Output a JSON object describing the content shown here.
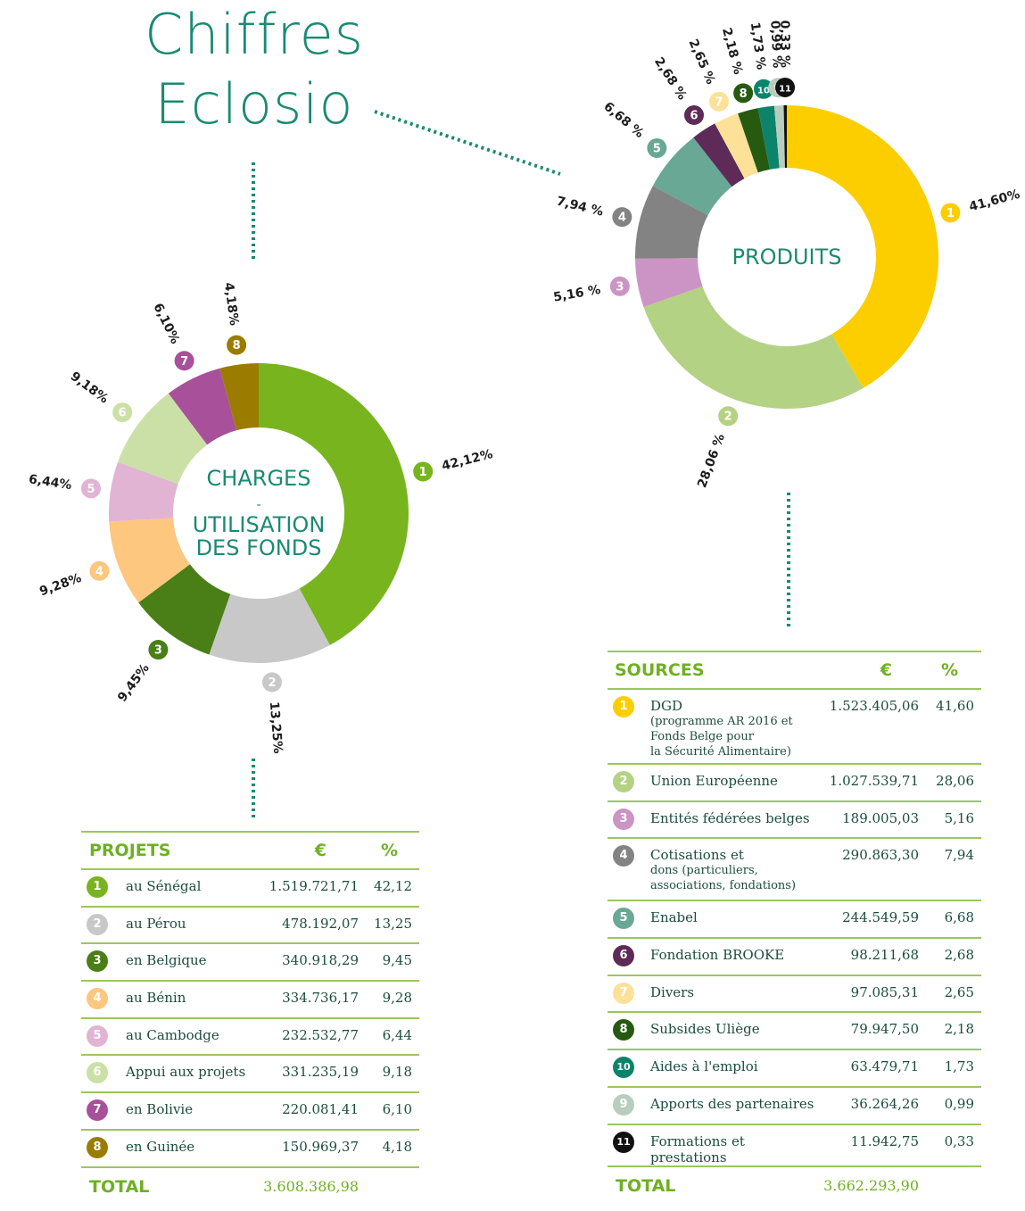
{
  "title_line1": "Chiffres",
  "title_line2": "Eclosio",
  "chart_data": [
    {
      "type": "pie",
      "name": "charges",
      "center_label": [
        "CHARGES",
        "-",
        "UTILISATION",
        "DES FONDS"
      ],
      "slices": [
        {
          "id": "1",
          "label": "au Sénégal",
          "value": 42.12,
          "pct_label": "42,12%",
          "color": "#78b41e"
        },
        {
          "id": "2",
          "label": "au Pérou",
          "value": 13.25,
          "pct_label": "13,25%",
          "color": "#c8c8c8"
        },
        {
          "id": "3",
          "label": "en Belgique",
          "value": 9.45,
          "pct_label": "9,45%",
          "color": "#4a7e16"
        },
        {
          "id": "4",
          "label": "au Bénin",
          "value": 9.28,
          "pct_label": "9,28%",
          "color": "#fdc77f"
        },
        {
          "id": "5",
          "label": "au Cambodge",
          "value": 6.44,
          "pct_label": "6,44%",
          "color": "#e1b4d3"
        },
        {
          "id": "6",
          "label": "Appui aux projets",
          "value": 9.18,
          "pct_label": "9,18%",
          "color": "#cbe0a6"
        },
        {
          "id": "7",
          "label": "en Bolivie",
          "value": 6.1,
          "pct_label": "6,10%",
          "color": "#a8509a"
        },
        {
          "id": "8",
          "label": "en Guinée",
          "value": 4.18,
          "pct_label": "4,18%",
          "color": "#9b7c00"
        }
      ]
    },
    {
      "type": "pie",
      "name": "produits",
      "center_label": [
        "PRODUITS"
      ],
      "slices": [
        {
          "id": "1",
          "label": "DGD",
          "value": 41.6,
          "pct_label": "41,60%",
          "color": "#fcce00"
        },
        {
          "id": "2",
          "label": "Union Européenne",
          "value": 28.06,
          "pct_label": "28,06 %",
          "color": "#b4d283"
        },
        {
          "id": "3",
          "label": "Entités fédérées belges",
          "value": 5.16,
          "pct_label": "5,16 %",
          "color": "#cc94c4"
        },
        {
          "id": "4",
          "label": "Cotisations et dons",
          "value": 7.94,
          "pct_label": "7,94 %",
          "color": "#838383"
        },
        {
          "id": "5",
          "label": "Enabel",
          "value": 6.68,
          "pct_label": "6,68 %",
          "color": "#68a895"
        },
        {
          "id": "6",
          "label": "Fondation BROOKE",
          "value": 2.68,
          "pct_label": "2,68 %",
          "color": "#5e2a58"
        },
        {
          "id": "7",
          "label": "Divers",
          "value": 2.65,
          "pct_label": "2,65 %",
          "color": "#fde199"
        },
        {
          "id": "8",
          "label": "Subsides Uliège",
          "value": 2.18,
          "pct_label": "2,18 %",
          "color": "#275a11"
        },
        {
          "id": "10",
          "label": "Aides à l'emploi",
          "value": 1.73,
          "pct_label": "1,73 %",
          "color": "#0b846b"
        },
        {
          "id": "9",
          "label": "Apports des partenaires",
          "value": 0.99,
          "pct_label": "0,99 %",
          "color": "#b9cdbf"
        },
        {
          "id": "11",
          "label": "Formations et prestations",
          "value": 0.33,
          "pct_label": "0,33 %",
          "color": "#111111"
        }
      ]
    }
  ],
  "projets_table": {
    "headers": [
      "PROJETS",
      "€",
      "%"
    ],
    "rows": [
      {
        "badge": "1",
        "color": "#78b41e",
        "label": "au Sénégal",
        "eur": "1.519.721,71",
        "pct": "42,12"
      },
      {
        "badge": "2",
        "color": "#c8c8c8",
        "label": "au Pérou",
        "eur": "478.192,07",
        "pct": "13,25"
      },
      {
        "badge": "3",
        "color": "#4a7e16",
        "label": "en Belgique",
        "eur": "340.918,29",
        "pct": "9,45"
      },
      {
        "badge": "4",
        "color": "#fdc77f",
        "label": "au Bénin",
        "eur": "334.736,17",
        "pct": "9,28"
      },
      {
        "badge": "5",
        "color": "#e1b4d3",
        "label": "au Cambodge",
        "eur": "232.532,77",
        "pct": "6,44"
      },
      {
        "badge": "6",
        "color": "#cbe0a6",
        "label": "Appui aux projets",
        "eur": "331.235,19",
        "pct": "9,18"
      },
      {
        "badge": "7",
        "color": "#a8509a",
        "label": "en Bolivie",
        "eur": "220.081,41",
        "pct": "6,10"
      },
      {
        "badge": "8",
        "color": "#9b7c00",
        "label": "en Guinée",
        "eur": "150.969,37",
        "pct": "4,18"
      }
    ],
    "total_label": "TOTAL",
    "total_value": "3.608.386,98"
  },
  "sources_table": {
    "headers": [
      "SOURCES",
      "€",
      "%"
    ],
    "rows": [
      {
        "badge": "1",
        "color": "#fcce00",
        "label": "DGD",
        "sub": [
          "(programme AR 2016 et",
          "Fonds Belge pour",
          "la Sécurité Alimentaire)"
        ],
        "eur": "1.523.405,06",
        "pct": "41,60"
      },
      {
        "badge": "2",
        "color": "#b4d283",
        "label": "Union Européenne",
        "sub": [],
        "eur": "1.027.539,71",
        "pct": "28,06"
      },
      {
        "badge": "3",
        "color": "#cc94c4",
        "label": "Entités fédérées belges",
        "sub": [],
        "eur": "189.005,03",
        "pct": "5,16"
      },
      {
        "badge": "4",
        "color": "#838383",
        "label": "Cotisations et",
        "sub": [
          "dons (particuliers,",
          "associations, fondations)"
        ],
        "eur": "290.863,30",
        "pct": "7,94"
      },
      {
        "badge": "5",
        "color": "#68a895",
        "label": "Enabel",
        "sub": [],
        "eur": "244.549,59",
        "pct": "6,68"
      },
      {
        "badge": "6",
        "color": "#5e2a58",
        "label": "Fondation BROOKE",
        "sub": [],
        "eur": "98.211,68",
        "pct": "2,68"
      },
      {
        "badge": "7",
        "color": "#fde199",
        "label": "Divers",
        "sub": [],
        "eur": "97.085,31",
        "pct": "2,65"
      },
      {
        "badge": "8",
        "color": "#275a11",
        "label": "Subsides Uliège",
        "sub": [],
        "eur": "79.947,50",
        "pct": "2,18"
      },
      {
        "badge": "10",
        "color": "#0b846b",
        "label": "Aides à l'emploi",
        "sub": [],
        "eur": "63.479,71",
        "pct": "1,73"
      },
      {
        "badge": "9",
        "color": "#b9cdbf",
        "label": "Apports des partenaires",
        "sub": [],
        "eur": "36.264,26",
        "pct": "0,99"
      },
      {
        "badge": "11",
        "color": "#111111",
        "label": "Formations et prestations",
        "sub": [],
        "eur": "11.942,75",
        "pct": "0,33"
      }
    ],
    "total_label": "TOTAL",
    "total_value": "3.662.293,90"
  }
}
